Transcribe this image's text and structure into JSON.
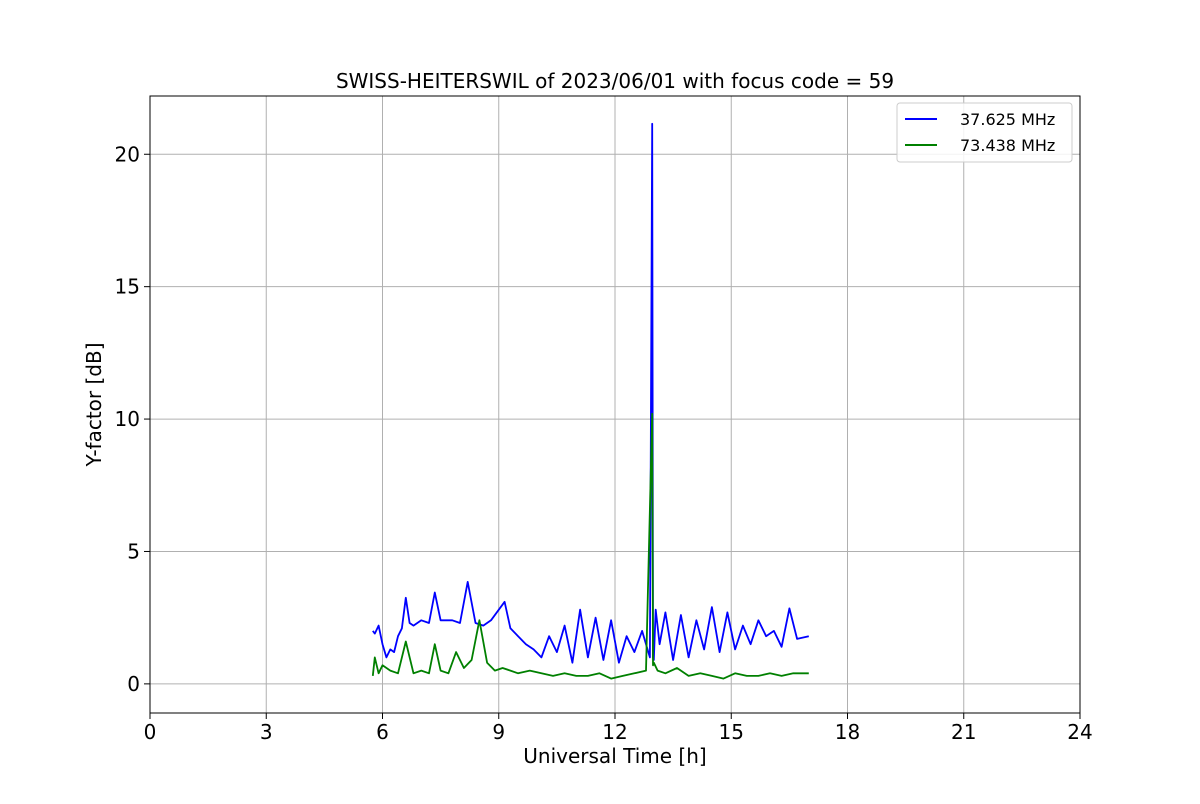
{
  "chart_data": {
    "type": "line",
    "title": "SWISS-HEITERSWIL of 2023/06/01 with focus code = 59",
    "xlabel": "Universal Time [h]",
    "ylabel": "Y-factor [dB]",
    "xlim": [
      0,
      24
    ],
    "ylim": [
      -1.1,
      22.2
    ],
    "xticks": [
      0,
      3,
      6,
      9,
      12,
      15,
      18,
      21,
      24
    ],
    "yticks": [
      0,
      5,
      10,
      15,
      20
    ],
    "grid": true,
    "legend_position": "top-right",
    "series": [
      {
        "name": "37.625 MHz",
        "color": "#0000ff",
        "x": [
          5.75,
          5.8,
          5.9,
          6.0,
          6.1,
          6.2,
          6.3,
          6.4,
          6.5,
          6.6,
          6.7,
          6.8,
          7.0,
          7.2,
          7.35,
          7.5,
          7.8,
          8.0,
          8.2,
          8.4,
          8.6,
          8.8,
          9.0,
          9.15,
          9.3,
          9.5,
          9.7,
          9.9,
          10.1,
          10.3,
          10.5,
          10.7,
          10.9,
          11.1,
          11.3,
          11.5,
          11.7,
          11.9,
          12.1,
          12.3,
          12.5,
          12.7,
          12.9,
          12.96,
          12.98,
          13.0,
          13.05,
          13.15,
          13.3,
          13.5,
          13.7,
          13.9,
          14.1,
          14.3,
          14.5,
          14.7,
          14.9,
          15.1,
          15.3,
          15.5,
          15.7,
          15.9,
          16.1,
          16.3,
          16.5,
          16.7,
          17.0
        ],
        "y": [
          2.0,
          1.9,
          2.2,
          1.5,
          1.0,
          1.3,
          1.2,
          1.8,
          2.1,
          3.25,
          2.3,
          2.2,
          2.4,
          2.3,
          3.45,
          2.4,
          2.4,
          2.3,
          3.85,
          2.3,
          2.2,
          2.4,
          2.8,
          3.1,
          2.1,
          1.8,
          1.5,
          1.3,
          1.0,
          1.8,
          1.2,
          2.2,
          0.8,
          2.8,
          1.0,
          2.5,
          0.9,
          2.4,
          0.8,
          1.8,
          1.2,
          2.0,
          1.0,
          21.15,
          1.0,
          0.9,
          2.8,
          1.5,
          2.7,
          0.9,
          2.6,
          1.0,
          2.4,
          1.3,
          2.9,
          1.2,
          2.7,
          1.3,
          2.2,
          1.5,
          2.4,
          1.8,
          2.0,
          1.4,
          2.85,
          1.7,
          1.8
        ]
      },
      {
        "name": "73.438 MHz",
        "color": "#008000",
        "x": [
          5.75,
          5.8,
          5.9,
          6.0,
          6.2,
          6.4,
          6.6,
          6.8,
          7.0,
          7.2,
          7.35,
          7.5,
          7.7,
          7.9,
          8.1,
          8.3,
          8.5,
          8.7,
          8.9,
          9.1,
          9.3,
          9.5,
          9.8,
          10.1,
          10.4,
          10.7,
          11.0,
          11.3,
          11.6,
          11.9,
          12.2,
          12.5,
          12.8,
          12.96,
          12.98,
          13.0,
          13.1,
          13.3,
          13.6,
          13.9,
          14.2,
          14.5,
          14.8,
          15.1,
          15.4,
          15.7,
          16.0,
          16.3,
          16.6,
          17.0
        ],
        "y": [
          0.3,
          1.0,
          0.4,
          0.7,
          0.5,
          0.4,
          1.6,
          0.4,
          0.5,
          0.4,
          1.5,
          0.5,
          0.4,
          1.2,
          0.6,
          0.9,
          2.4,
          0.8,
          0.5,
          0.6,
          0.5,
          0.4,
          0.5,
          0.4,
          0.3,
          0.4,
          0.3,
          0.3,
          0.4,
          0.2,
          0.3,
          0.4,
          0.5,
          10.2,
          0.7,
          0.8,
          0.5,
          0.4,
          0.6,
          0.3,
          0.4,
          0.3,
          0.2,
          0.4,
          0.3,
          0.3,
          0.4,
          0.3,
          0.4,
          0.4
        ]
      }
    ]
  }
}
